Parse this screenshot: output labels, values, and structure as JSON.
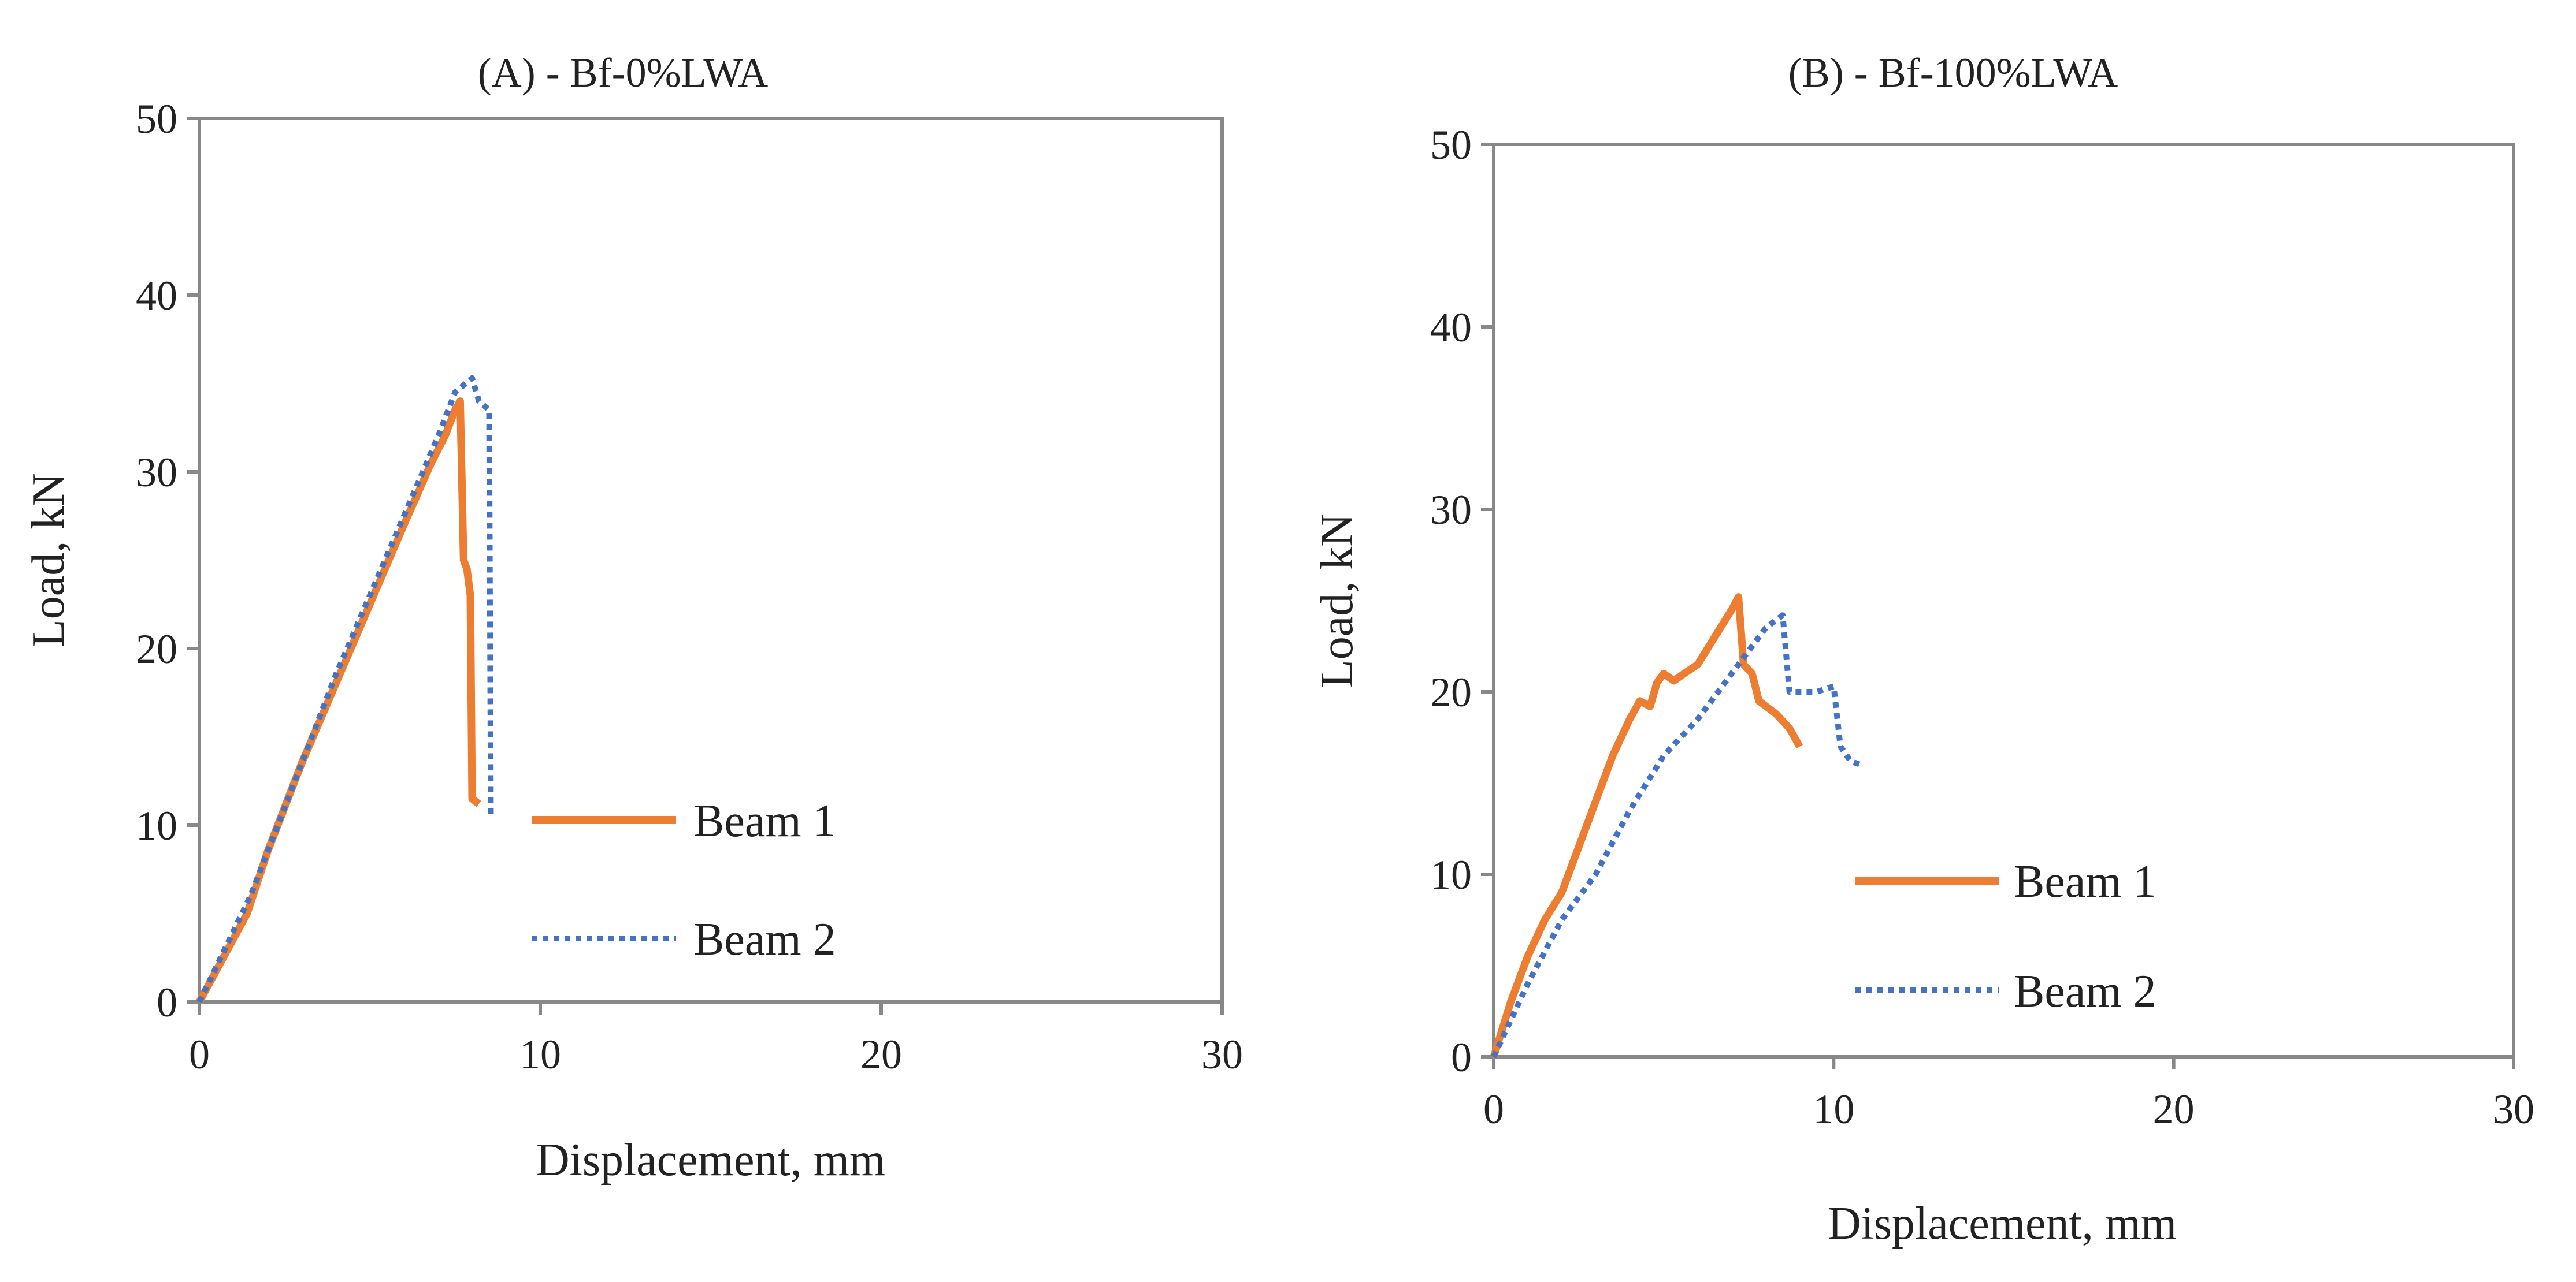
{
  "colors": {
    "beam1": "#ED7D31",
    "beam2": "#4472C4",
    "axis": "#888888",
    "text": "#222222"
  },
  "chart_data": [
    {
      "type": "line",
      "title": "(A) - Bf-0%LWA",
      "xlabel": "Displacement, mm",
      "ylabel": "Load, kN",
      "xlim": [
        0,
        30
      ],
      "ylim": [
        0,
        50
      ],
      "xticks": [
        0,
        10,
        20,
        30
      ],
      "yticks": [
        0,
        10,
        20,
        30,
        40,
        50
      ],
      "grid": false,
      "legend": "center-right",
      "series": [
        {
          "name": "Beam 1",
          "style": "solid",
          "points": [
            [
              0,
              0
            ],
            [
              0.7,
              2.5
            ],
            [
              1.4,
              5
            ],
            [
              2.0,
              8.5
            ],
            [
              2.5,
              11
            ],
            [
              3.0,
              13.5
            ],
            [
              4.0,
              18
            ],
            [
              5.0,
              22.5
            ],
            [
              6.0,
              27
            ],
            [
              6.8,
              30.5
            ],
            [
              7.2,
              32
            ],
            [
              7.5,
              33.5
            ],
            [
              7.65,
              34
            ],
            [
              7.75,
              25
            ],
            [
              7.85,
              24.5
            ],
            [
              7.95,
              23
            ],
            [
              8.0,
              11.5
            ],
            [
              8.2,
              11.2
            ]
          ]
        },
        {
          "name": "Beam 2",
          "style": "dotted",
          "points": [
            [
              0,
              0
            ],
            [
              0.7,
              2.8
            ],
            [
              1.5,
              6
            ],
            [
              2.2,
              9.5
            ],
            [
              3.0,
              13.5
            ],
            [
              4.0,
              18.5
            ],
            [
              5.0,
              23
            ],
            [
              6.0,
              27.5
            ],
            [
              7.0,
              32
            ],
            [
              7.5,
              34.5
            ],
            [
              8.0,
              35.3
            ],
            [
              8.2,
              34
            ],
            [
              8.5,
              33.5
            ],
            [
              8.55,
              10.5
            ]
          ]
        }
      ]
    },
    {
      "type": "line",
      "title": "(B) - Bf-100%LWA",
      "xlabel": "Displacement, mm",
      "ylabel": "Load, kN",
      "xlim": [
        0,
        30
      ],
      "ylim": [
        0,
        50
      ],
      "xticks": [
        0,
        10,
        20,
        30
      ],
      "yticks": [
        0,
        10,
        20,
        30,
        40,
        50
      ],
      "grid": false,
      "legend": "center-right",
      "series": [
        {
          "name": "Beam 1",
          "style": "solid",
          "points": [
            [
              0,
              0
            ],
            [
              0.5,
              3
            ],
            [
              1.0,
              5.5
            ],
            [
              1.5,
              7.5
            ],
            [
              2.0,
              9
            ],
            [
              2.5,
              11.5
            ],
            [
              3.0,
              14
            ],
            [
              3.5,
              16.5
            ],
            [
              4.0,
              18.5
            ],
            [
              4.3,
              19.5
            ],
            [
              4.6,
              19.2
            ],
            [
              4.8,
              20.5
            ],
            [
              5.0,
              21
            ],
            [
              5.3,
              20.6
            ],
            [
              5.6,
              21
            ],
            [
              6.0,
              21.5
            ],
            [
              6.5,
              23
            ],
            [
              7.0,
              24.5
            ],
            [
              7.2,
              25.2
            ],
            [
              7.35,
              21.5
            ],
            [
              7.6,
              21
            ],
            [
              7.8,
              19.5
            ],
            [
              8.3,
              18.8
            ],
            [
              8.7,
              18
            ],
            [
              9.0,
              17
            ]
          ]
        },
        {
          "name": "Beam 2",
          "style": "dotted",
          "points": [
            [
              0,
              0
            ],
            [
              1.0,
              4
            ],
            [
              2.0,
              7.5
            ],
            [
              3.0,
              10
            ],
            [
              4.0,
              13.5
            ],
            [
              5.0,
              16.5
            ],
            [
              6.0,
              18.5
            ],
            [
              7.0,
              21
            ],
            [
              8.0,
              23.5
            ],
            [
              8.5,
              24.2
            ],
            [
              8.7,
              20
            ],
            [
              9.5,
              20
            ],
            [
              10.0,
              20.3
            ],
            [
              10.2,
              17
            ],
            [
              10.5,
              16.2
            ],
            [
              10.8,
              16
            ]
          ]
        }
      ]
    }
  ]
}
